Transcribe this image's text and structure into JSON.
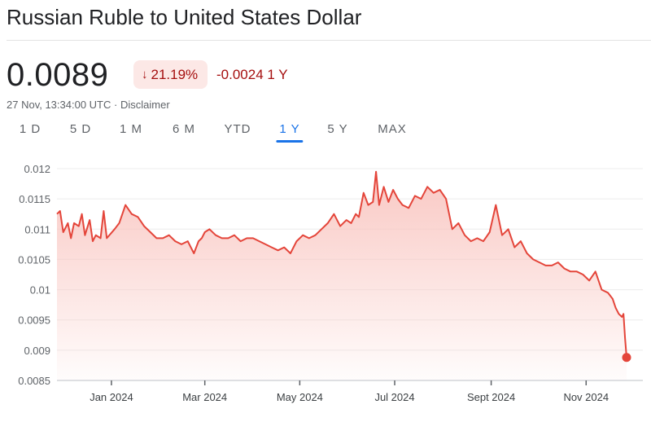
{
  "header": {
    "title": "Russian Ruble to United States Dollar"
  },
  "quote": {
    "price": "0.0089",
    "percent_change": "21.19%",
    "direction_icon": "arrow-down-icon",
    "absolute_change": "-0.0024",
    "period": "1 Y",
    "timestamp": "27 Nov, 13:34:00 UTC",
    "separator": "·",
    "disclaimer": "Disclaimer"
  },
  "tabs": [
    {
      "label": "1 D",
      "active": false
    },
    {
      "label": "5 D",
      "active": false
    },
    {
      "label": "1 M",
      "active": false
    },
    {
      "label": "6 M",
      "active": false
    },
    {
      "label": "YTD",
      "active": false
    },
    {
      "label": "1 Y",
      "active": true
    },
    {
      "label": "5 Y",
      "active": false
    },
    {
      "label": "MAX",
      "active": false
    }
  ],
  "colors": {
    "line": "#e4453a",
    "area_top": "#f9c5c0",
    "negative_text": "#a50e0e",
    "negative_bg": "#fce8e6",
    "active_tab": "#1a73e8",
    "grid": "#ececec"
  },
  "chart_data": {
    "type": "area",
    "x_start": "2023-11-27",
    "x_end": "2024-11-27",
    "ylim": [
      0.0085,
      0.012
    ],
    "yticks": [
      0.012,
      0.0115,
      0.011,
      0.0105,
      0.01,
      0.0095,
      0.009,
      0.0085
    ],
    "ytick_labels": [
      "0.012",
      "0.0115",
      "0.011",
      "0.0105",
      "0.01",
      "0.0095",
      "0.009",
      "0.0085"
    ],
    "xticks": [
      {
        "date": "2024-01-01",
        "label": "Jan 2024"
      },
      {
        "date": "2024-03-01",
        "label": "Mar 2024"
      },
      {
        "date": "2024-05-01",
        "label": "May 2024"
      },
      {
        "date": "2024-07-01",
        "label": "Jul 2024"
      },
      {
        "date": "2024-09-01",
        "label": "Sept 2024"
      },
      {
        "date": "2024-11-01",
        "label": "Nov 2024"
      }
    ],
    "grid": true,
    "series": [
      {
        "x": [
          "2023-11-27",
          "2023-11-29",
          "2023-12-01",
          "2023-12-04",
          "2023-12-06",
          "2023-12-08",
          "2023-12-11",
          "2023-12-13",
          "2023-12-15",
          "2023-12-18",
          "2023-12-20",
          "2023-12-22",
          "2023-12-25",
          "2023-12-27",
          "2023-12-29",
          "2024-01-03",
          "2024-01-06",
          "2024-01-10",
          "2024-01-14",
          "2024-01-18",
          "2024-01-22",
          "2024-01-26",
          "2024-01-30",
          "2024-02-03",
          "2024-02-07",
          "2024-02-11",
          "2024-02-15",
          "2024-02-19",
          "2024-02-23",
          "2024-02-26",
          "2024-02-28",
          "2024-03-01",
          "2024-03-04",
          "2024-03-08",
          "2024-03-12",
          "2024-03-16",
          "2024-03-20",
          "2024-03-24",
          "2024-03-28",
          "2024-04-01",
          "2024-04-05",
          "2024-04-09",
          "2024-04-13",
          "2024-04-17",
          "2024-04-21",
          "2024-04-25",
          "2024-04-29",
          "2024-05-03",
          "2024-05-07",
          "2024-05-11",
          "2024-05-15",
          "2024-05-19",
          "2024-05-23",
          "2024-05-27",
          "2024-05-31",
          "2024-06-03",
          "2024-06-06",
          "2024-06-08",
          "2024-06-11",
          "2024-06-14",
          "2024-06-17",
          "2024-06-19",
          "2024-06-21",
          "2024-06-24",
          "2024-06-27",
          "2024-06-30",
          "2024-07-03",
          "2024-07-06",
          "2024-07-10",
          "2024-07-14",
          "2024-07-18",
          "2024-07-22",
          "2024-07-26",
          "2024-07-30",
          "2024-08-03",
          "2024-08-07",
          "2024-08-11",
          "2024-08-15",
          "2024-08-19",
          "2024-08-23",
          "2024-08-27",
          "2024-08-31",
          "2024-09-04",
          "2024-09-08",
          "2024-09-12",
          "2024-09-16",
          "2024-09-20",
          "2024-09-24",
          "2024-09-28",
          "2024-10-02",
          "2024-10-06",
          "2024-10-10",
          "2024-10-14",
          "2024-10-18",
          "2024-10-22",
          "2024-10-26",
          "2024-10-30",
          "2024-11-03",
          "2024-11-07",
          "2024-11-11",
          "2024-11-15",
          "2024-11-18",
          "2024-11-20",
          "2024-11-22",
          "2024-11-24",
          "2024-11-25",
          "2024-11-26",
          "2024-11-27"
        ],
        "y": [
          0.01125,
          0.0113,
          0.01095,
          0.0111,
          0.01085,
          0.0111,
          0.01105,
          0.01125,
          0.0109,
          0.01115,
          0.0108,
          0.0109,
          0.01085,
          0.0113,
          0.01085,
          0.011,
          0.0111,
          0.0114,
          0.01125,
          0.0112,
          0.01105,
          0.01095,
          0.01085,
          0.01085,
          0.0109,
          0.0108,
          0.01075,
          0.0108,
          0.0106,
          0.0108,
          0.01085,
          0.01095,
          0.011,
          0.0109,
          0.01085,
          0.01085,
          0.0109,
          0.0108,
          0.01085,
          0.01085,
          0.0108,
          0.01075,
          0.0107,
          0.01065,
          0.0107,
          0.0106,
          0.0108,
          0.0109,
          0.01085,
          0.0109,
          0.011,
          0.0111,
          0.01125,
          0.01105,
          0.01115,
          0.0111,
          0.01125,
          0.0112,
          0.0116,
          0.0114,
          0.01145,
          0.01195,
          0.0114,
          0.0117,
          0.01145,
          0.01165,
          0.0115,
          0.0114,
          0.01135,
          0.01155,
          0.0115,
          0.0117,
          0.0116,
          0.01165,
          0.0115,
          0.011,
          0.0111,
          0.0109,
          0.0108,
          0.01085,
          0.0108,
          0.01095,
          0.0114,
          0.0109,
          0.011,
          0.0107,
          0.0108,
          0.0106,
          0.0105,
          0.01045,
          0.0104,
          0.0104,
          0.01045,
          0.01035,
          0.0103,
          0.0103,
          0.01025,
          0.01015,
          0.0103,
          0.01,
          0.00995,
          0.00985,
          0.0097,
          0.0096,
          0.00955,
          0.0096,
          0.0092,
          0.00888
        ]
      }
    ]
  }
}
